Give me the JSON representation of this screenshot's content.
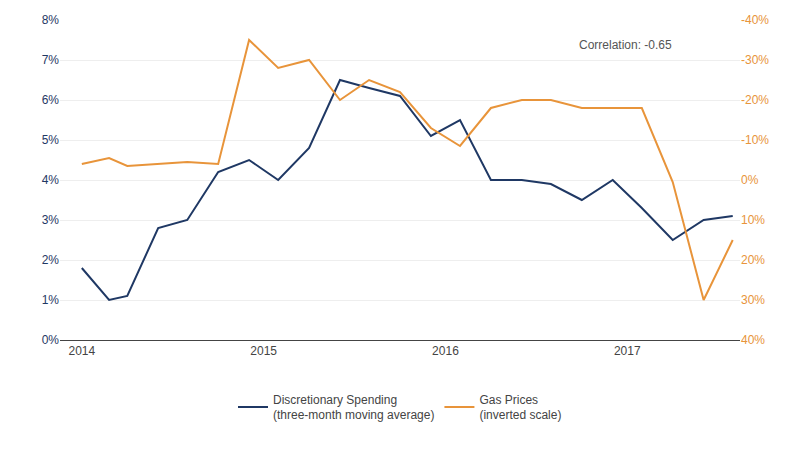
{
  "chart_data": {
    "type": "line",
    "annotation": "Correlation: -0.65",
    "x": [
      2014.0,
      2014.15,
      2014.25,
      2014.42,
      2014.58,
      2014.75,
      2014.92,
      2015.08,
      2015.25,
      2015.42,
      2015.58,
      2015.75,
      2015.92,
      2016.08,
      2016.25,
      2016.42,
      2016.58,
      2016.75,
      2016.92,
      2017.08,
      2017.25,
      2017.42,
      2017.58
    ],
    "series": [
      {
        "name": "Discretionary Spending\n(three-month moving average)",
        "color": "#1f3864",
        "values": [
          1.8,
          1.0,
          1.1,
          2.8,
          3.0,
          4.2,
          4.5,
          4.0,
          4.8,
          6.5,
          6.3,
          6.1,
          5.1,
          5.5,
          4.0,
          4.0,
          3.9,
          3.5,
          4.0,
          3.3,
          2.5,
          3.0,
          3.1
        ]
      },
      {
        "name": "Gas Prices\n(inverted scale)",
        "color": "#e8943a",
        "axis": "y2",
        "values": [
          -4.0,
          -5.5,
          -3.5,
          -4.0,
          -4.5,
          -4.0,
          -35.0,
          -28.0,
          -30.0,
          -20.0,
          -25.0,
          -22.0,
          -13.0,
          -8.5,
          -18.0,
          -20.0,
          -20.0,
          -18.0,
          -18.0,
          -18.0,
          0.5,
          30.0,
          15.0
        ]
      }
    ],
    "xlim": [
      2013.88,
      2017.62
    ],
    "xticks": [
      2014,
      2015,
      2016,
      2017
    ],
    "ylim": [
      0,
      8
    ],
    "yticks": [
      {
        "value": 0,
        "label": "0%"
      },
      {
        "value": 1,
        "label": "1%"
      },
      {
        "value": 2,
        "label": "2%"
      },
      {
        "value": 3,
        "label": "3%"
      },
      {
        "value": 4,
        "label": "4%"
      },
      {
        "value": 5,
        "label": "5%"
      },
      {
        "value": 6,
        "label": "6%"
      },
      {
        "value": 7,
        "label": "7%"
      },
      {
        "value": 8,
        "label": "8%"
      }
    ],
    "y2lim": [
      40,
      -40
    ],
    "y2ticks": [
      {
        "value": 40,
        "label": "40%"
      },
      {
        "value": 30,
        "label": "30%"
      },
      {
        "value": 20,
        "label": "20%"
      },
      {
        "value": 10,
        "label": "10%"
      },
      {
        "value": 0,
        "label": "0%"
      },
      {
        "value": -10,
        "label": "-10%"
      },
      {
        "value": -20,
        "label": "-20%"
      },
      {
        "value": -30,
        "label": "-30%"
      },
      {
        "value": -40,
        "label": "-40%"
      }
    ],
    "grid": true,
    "legend": "bottom"
  }
}
